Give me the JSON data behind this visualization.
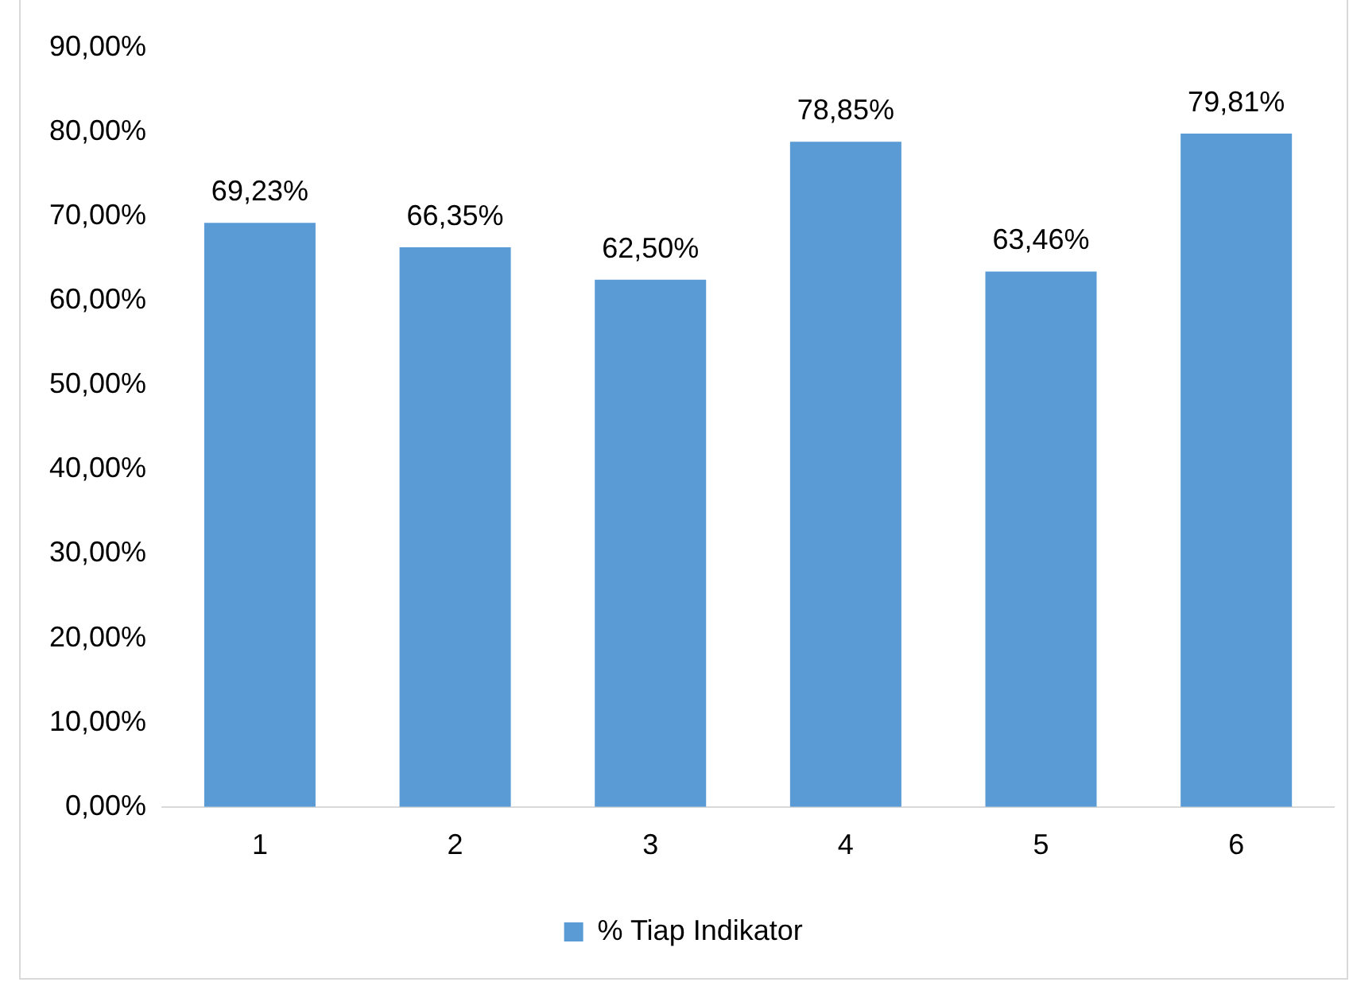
{
  "chart_data": {
    "type": "bar",
    "categories": [
      "1",
      "2",
      "3",
      "4",
      "5",
      "6"
    ],
    "series": [
      {
        "name": "% Tiap Indikator",
        "color": "#5b9bd5",
        "values": [
          69.23,
          66.35,
          62.5,
          78.85,
          63.46,
          79.81
        ],
        "value_labels": [
          "69,23%",
          "66,35%",
          "62,50%",
          "78,85%",
          "63,46%",
          "79,81%"
        ]
      }
    ],
    "ylim": [
      0,
      90
    ],
    "yticks": [
      {
        "value": 0,
        "label": "0,00%"
      },
      {
        "value": 10,
        "label": "10,00%"
      },
      {
        "value": 20,
        "label": "20,00%"
      },
      {
        "value": 30,
        "label": "30,00%"
      },
      {
        "value": 40,
        "label": "40,00%"
      },
      {
        "value": 50,
        "label": "50,00%"
      },
      {
        "value": 60,
        "label": "60,00%"
      },
      {
        "value": 70,
        "label": "70,00%"
      },
      {
        "value": 80,
        "label": "80,00%"
      },
      {
        "value": 90,
        "label": "90,00%"
      }
    ],
    "grid": false,
    "legend": "bottom"
  }
}
